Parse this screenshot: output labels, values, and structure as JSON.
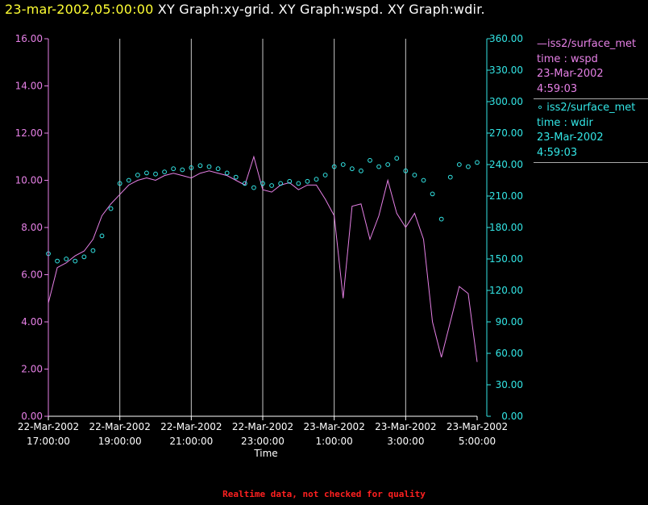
{
  "header": {
    "timestamp": "23-mar-2002,05:00:00",
    "graphs": "  XY Graph:xy-grid.  XY Graph:wspd.  XY Graph:wdir."
  },
  "footer": {
    "note": "Realtime data, not checked for quality"
  },
  "legend": [
    {
      "series": "—iss2/surface_met",
      "line2": "time : wspd",
      "date": "23-Mar-2002",
      "time": "4:59:03",
      "color": "#e680e6"
    },
    {
      "series": "∘ iss2/surface_met",
      "line2": "time : wdir",
      "date": "23-Mar-2002",
      "time": "4:59:03",
      "color": "#33e6e6"
    }
  ],
  "chart_data": {
    "type": "line",
    "xlabel": "Time",
    "x_ticks": [
      {
        "line1": "22-Mar-2002",
        "line2": "17:00:00"
      },
      {
        "line1": "22-Mar-2002",
        "line2": "19:00:00"
      },
      {
        "line1": "22-Mar-2002",
        "line2": "21:00:00"
      },
      {
        "line1": "22-Mar-2002",
        "line2": "23:00:00"
      },
      {
        "line1": "23-Mar-2002",
        "line2": "1:00:00"
      },
      {
        "line1": "23-Mar-2002",
        "line2": "3:00:00"
      },
      {
        "line1": "23-Mar-2002",
        "line2": "5:00:00"
      }
    ],
    "xlim": [
      "22-Mar-2002 17:00:00",
      "23-Mar-2002 05:00:00"
    ],
    "grid": "vertical",
    "y_left": {
      "ylim": [
        0,
        16
      ],
      "ticks": [
        "0.00",
        "2.00",
        "4.00",
        "6.00",
        "8.00",
        "10.00",
        "12.00",
        "14.00",
        "16.00"
      ],
      "color": "#e680e6"
    },
    "y_right": {
      "ylim": [
        0,
        360
      ],
      "ticks": [
        "0.00",
        "30.00",
        "60.00",
        "90.00",
        "120.00",
        "150.00",
        "180.00",
        "210.00",
        "240.00",
        "270.00",
        "300.00",
        "330.00",
        "360.00"
      ],
      "color": "#33e6e6"
    },
    "series": [
      {
        "name": "iss2/surface_met time : wspd",
        "axis": "left",
        "style": "line",
        "color": "#e680e6",
        "x_hours": [
          0,
          0.25,
          0.5,
          0.75,
          1,
          1.25,
          1.5,
          1.75,
          2,
          2.25,
          2.5,
          2.75,
          3,
          3.25,
          3.5,
          3.75,
          4,
          4.25,
          4.5,
          4.75,
          5,
          5.25,
          5.5,
          5.75,
          6,
          6.25,
          6.5,
          6.75,
          7,
          7.25,
          7.5,
          7.75,
          8,
          8.25,
          8.5,
          8.75,
          9,
          9.25,
          9.5,
          9.75,
          10,
          10.25,
          10.5,
          10.75,
          11,
          11.25,
          11.5,
          11.75,
          12
        ],
        "values": [
          4.8,
          6.3,
          6.5,
          6.8,
          7.0,
          7.5,
          8.5,
          9.0,
          9.4,
          9.8,
          10.0,
          10.1,
          10.0,
          10.2,
          10.3,
          10.2,
          10.1,
          10.3,
          10.4,
          10.3,
          10.2,
          10.0,
          9.8,
          11.0,
          9.6,
          9.5,
          9.8,
          9.9,
          9.6,
          9.8,
          9.8,
          9.2,
          8.5,
          5.0,
          8.9,
          9.0,
          7.5,
          8.5,
          10.0,
          8.6,
          8.0,
          8.6,
          7.5,
          4.0,
          2.5,
          4.0,
          5.5,
          5.2,
          2.3
        ]
      },
      {
        "name": "iss2/surface_met time : wdir",
        "axis": "right",
        "style": "scatter",
        "color": "#33e6e6",
        "x_hours": [
          0,
          0.25,
          0.5,
          0.75,
          1,
          1.25,
          1.5,
          1.75,
          2,
          2.25,
          2.5,
          2.75,
          3,
          3.25,
          3.5,
          3.75,
          4,
          4.25,
          4.5,
          4.75,
          5,
          5.25,
          5.5,
          5.75,
          6,
          6.25,
          6.5,
          6.75,
          7,
          7.25,
          7.5,
          7.75,
          8,
          8.25,
          8.5,
          8.75,
          9,
          9.25,
          9.5,
          9.75,
          10,
          10.25,
          10.5,
          10.75,
          11,
          11.25,
          11.5,
          11.75,
          12
        ],
        "values": [
          155,
          148,
          150,
          148,
          152,
          158,
          172,
          198,
          222,
          225,
          230,
          232,
          231,
          233,
          236,
          235,
          237,
          239,
          238,
          236,
          232,
          228,
          222,
          218,
          222,
          220,
          222,
          224,
          222,
          224,
          226,
          230,
          238,
          240,
          236,
          234,
          244,
          238,
          240,
          246,
          234,
          230,
          225,
          212,
          188,
          228,
          240,
          238,
          242
        ]
      }
    ]
  }
}
